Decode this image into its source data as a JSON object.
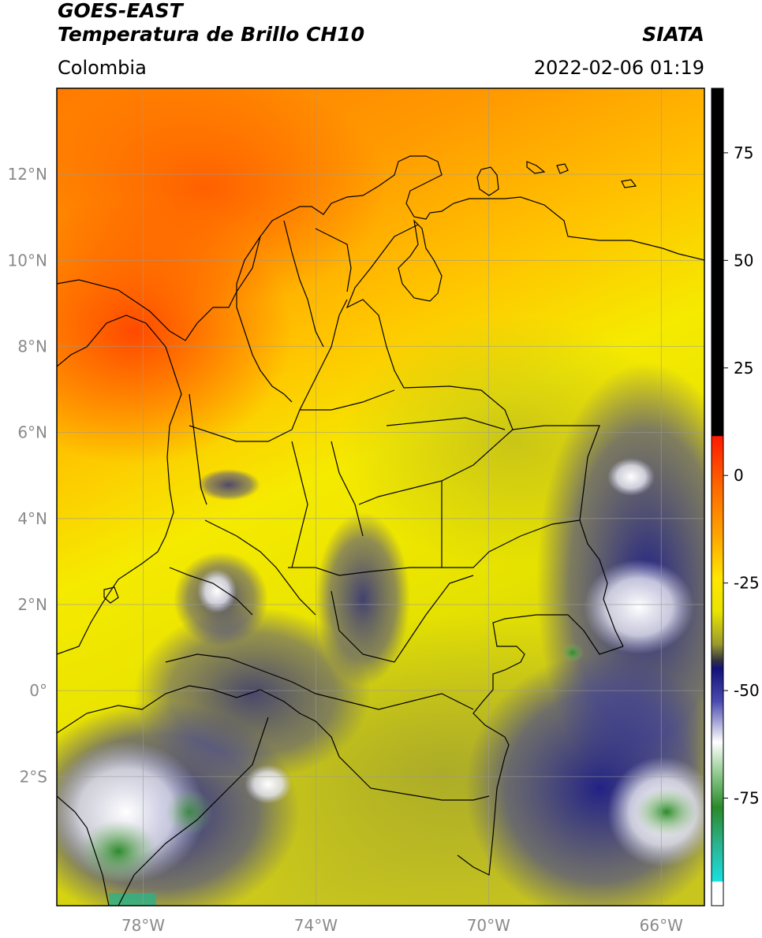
{
  "header": {
    "title_line1": "GOES-EAST",
    "title_line2": "Temperatura de Brillo CH10",
    "brand": "SIATA",
    "region": "Colombia",
    "timestamp": "2022-02-06 01:19"
  },
  "map": {
    "lat_ticks": [
      {
        "value": 12,
        "label": "12°N"
      },
      {
        "value": 10,
        "label": "10°N"
      },
      {
        "value": 8,
        "label": "8°N"
      },
      {
        "value": 6,
        "label": "6°N"
      },
      {
        "value": 4,
        "label": "4°N"
      },
      {
        "value": 2,
        "label": "2°N"
      },
      {
        "value": 0,
        "label": "0°"
      },
      {
        "value": -2,
        "label": "2°S"
      }
    ],
    "lon_ticks": [
      {
        "value": -78,
        "label": "78°W"
      },
      {
        "value": -74,
        "label": "74°W"
      },
      {
        "value": -70,
        "label": "70°W"
      },
      {
        "value": -66,
        "label": "66°W"
      }
    ],
    "extent": {
      "lon_min": -80,
      "lon_max": -65,
      "lat_min": -5.0,
      "lat_max": 14
    }
  },
  "colorbar": {
    "ticks": [
      {
        "value": 75,
        "label": "75"
      },
      {
        "value": 50,
        "label": "50"
      },
      {
        "value": 25,
        "label": "25"
      },
      {
        "value": 0,
        "label": "0"
      },
      {
        "value": -25,
        "label": "-25"
      },
      {
        "value": -50,
        "label": "-50"
      },
      {
        "value": -75,
        "label": "-75"
      }
    ],
    "range": [
      -100,
      90
    ]
  },
  "colors": {
    "warm": "#ff6a00",
    "orange": "#ff9900",
    "yellow": "#f2ee00",
    "olive": "#b3b32a",
    "navy": "#1a1a8a",
    "white": "#f2f2f2",
    "green": "#2d8a2d",
    "cyan": "#19d6d6",
    "black": "#000000"
  }
}
